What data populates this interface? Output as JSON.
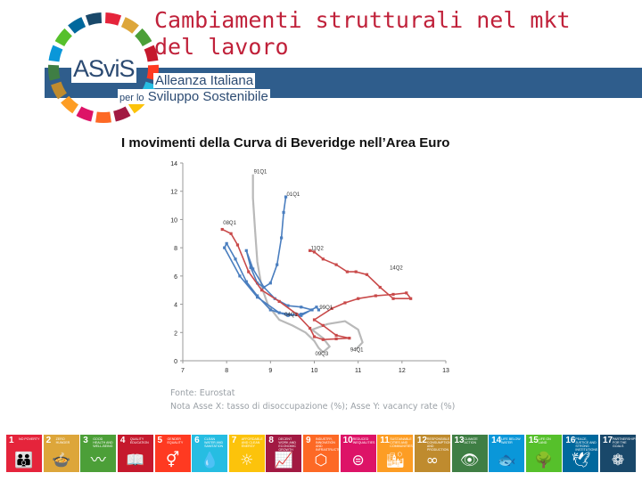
{
  "header": {
    "title": "Cambiamenti strutturali nel mkt del lavoro",
    "logo": {
      "name": "ASviS",
      "line1": "Alleanza Italiana",
      "line2_prefix": "per lo",
      "line2": "Sviluppo Sostenibile"
    }
  },
  "chart_title": "I movimenti della Curva di Beveridge nell’Area Euro",
  "notes": {
    "source": "Fonte: Eurostat",
    "note": "Nota Asse X: tasso di disoccupazione (%); Asse Y: vacancy rate (%)"
  },
  "chart_data": {
    "type": "line",
    "title": "I movimenti della Curva di Beveridge nell’Area Euro",
    "xlabel": "",
    "ylabel": "",
    "xlim": [
      7,
      13
    ],
    "ylim": [
      0,
      14
    ],
    "xticks": [
      7,
      8,
      9,
      10,
      11,
      12,
      13
    ],
    "yticks": [
      0,
      2,
      4,
      6,
      8,
      10,
      12,
      14
    ],
    "grid": false,
    "legend": "none",
    "series": [
      {
        "color": "#b9b9b9",
        "marker": false,
        "points": [
          [
            8.6,
            13.2
          ],
          [
            8.6,
            11.5
          ],
          [
            8.65,
            9.2
          ],
          [
            8.7,
            7.0
          ],
          [
            8.8,
            5.2
          ],
          [
            8.95,
            3.9
          ],
          [
            9.2,
            2.9
          ],
          [
            9.5,
            2.5
          ],
          [
            9.8,
            2.0
          ],
          [
            10.0,
            1.4
          ],
          [
            10.1,
            0.9
          ],
          [
            10.2,
            0.6
          ],
          [
            10.35,
            1.0
          ],
          [
            10.2,
            1.6
          ],
          [
            9.95,
            2.2
          ],
          [
            10.3,
            2.6
          ],
          [
            10.7,
            2.8
          ],
          [
            11.0,
            2.2
          ],
          [
            11.1,
            1.3
          ],
          [
            10.95,
            0.8
          ]
        ]
      },
      {
        "color": "#4a7ebf",
        "marker": true,
        "points": [
          [
            9.35,
            11.6
          ],
          [
            9.3,
            10.5
          ],
          [
            9.25,
            8.7
          ],
          [
            9.15,
            6.8
          ],
          [
            9.0,
            5.5
          ],
          [
            8.85,
            5.2
          ],
          [
            8.7,
            5.5
          ],
          [
            8.55,
            6.6
          ],
          [
            8.45,
            7.8
          ],
          [
            8.6,
            6.5
          ],
          [
            8.85,
            5.2
          ],
          [
            9.1,
            4.4
          ],
          [
            9.4,
            3.9
          ],
          [
            9.7,
            3.8
          ],
          [
            9.95,
            3.6
          ],
          [
            9.7,
            3.3
          ],
          [
            9.4,
            3.2
          ],
          [
            9.0,
            3.6
          ],
          [
            8.7,
            4.6
          ],
          [
            8.45,
            5.6
          ],
          [
            8.2,
            7.2
          ],
          [
            8.0,
            8.3
          ],
          [
            7.95,
            8.0
          ],
          [
            8.3,
            6.0
          ],
          [
            8.7,
            4.5
          ],
          [
            9.2,
            3.4
          ],
          [
            9.7,
            3.2
          ],
          [
            10.05,
            3.8
          ],
          [
            10.1,
            3.6
          ]
        ]
      },
      {
        "color": "#c94a4a",
        "marker": true,
        "points": [
          [
            7.9,
            9.3
          ],
          [
            8.1,
            9.0
          ],
          [
            8.25,
            8.2
          ],
          [
            8.5,
            6.3
          ],
          [
            8.8,
            5.0
          ],
          [
            9.2,
            4.2
          ],
          [
            9.6,
            3.3
          ],
          [
            9.9,
            2.3
          ],
          [
            10.0,
            1.7
          ],
          [
            10.2,
            1.5
          ],
          [
            10.5,
            1.55
          ],
          [
            10.8,
            1.6
          ],
          [
            10.5,
            1.8
          ],
          [
            10.2,
            2.5
          ],
          [
            10.0,
            2.9
          ],
          [
            10.4,
            3.7
          ],
          [
            10.7,
            4.1
          ],
          [
            11.0,
            4.4
          ],
          [
            11.4,
            4.6
          ],
          [
            11.8,
            4.7
          ],
          [
            12.1,
            4.8
          ],
          [
            12.2,
            4.4
          ],
          [
            11.8,
            4.4
          ],
          [
            11.5,
            5.2
          ],
          [
            11.2,
            6.1
          ],
          [
            10.95,
            6.3
          ],
          [
            10.75,
            6.3
          ],
          [
            10.5,
            6.8
          ],
          [
            10.2,
            7.2
          ],
          [
            10.0,
            7.7
          ],
          [
            9.9,
            7.8
          ]
        ]
      }
    ],
    "annotations": [
      {
        "text": "91Q1",
        "x": 8.6,
        "y": 13.2
      },
      {
        "text": "01Q1",
        "x": 9.35,
        "y": 11.6
      },
      {
        "text": "08Q1",
        "x": 7.9,
        "y": 9.6
      },
      {
        "text": "11Q2",
        "x": 9.9,
        "y": 7.8
      },
      {
        "text": "14Q2",
        "x": 11.7,
        "y": 6.4
      },
      {
        "text": "99Q1",
        "x": 10.1,
        "y": 3.6
      },
      {
        "text": "04Q1",
        "x": 9.3,
        "y": 3.1
      },
      {
        "text": "09Q3",
        "x": 10.0,
        "y": 0.3
      },
      {
        "text": "94Q1",
        "x": 10.8,
        "y": 0.6
      }
    ]
  },
  "sdg": [
    {
      "num": "1",
      "label": "No poverty",
      "color": "#e5243b",
      "icon": "👪"
    },
    {
      "num": "2",
      "label": "Zero hunger",
      "color": "#dda63a",
      "icon": "🍲"
    },
    {
      "num": "3",
      "label": "Good health and well-being",
      "color": "#4c9f38",
      "icon": "〰"
    },
    {
      "num": "4",
      "label": "Quality education",
      "color": "#c5192d",
      "icon": "📖"
    },
    {
      "num": "5",
      "label": "Gender equality",
      "color": "#ff3a21",
      "icon": "⚥"
    },
    {
      "num": "6",
      "label": "Clean water and sanitation",
      "color": "#26bde2",
      "icon": "💧"
    },
    {
      "num": "7",
      "label": "Affordable and clean energy",
      "color": "#fcc30b",
      "icon": "☼"
    },
    {
      "num": "8",
      "label": "Decent work and economic growth",
      "color": "#a21942",
      "icon": "📈"
    },
    {
      "num": "9",
      "label": "Industry, innovation and infrastructure",
      "color": "#fd6925",
      "icon": "⬡"
    },
    {
      "num": "10",
      "label": "Reduced inequalities",
      "color": "#dd1367",
      "icon": "⊜"
    },
    {
      "num": "11",
      "label": "Sustainable cities and communities",
      "color": "#fd9d24",
      "icon": "🏙"
    },
    {
      "num": "12",
      "label": "Responsible consumption and production",
      "color": "#bf8b2e",
      "icon": "∞"
    },
    {
      "num": "13",
      "label": "Climate action",
      "color": "#3f7e44",
      "icon": "👁"
    },
    {
      "num": "14",
      "label": "Life below water",
      "color": "#0a97d9",
      "icon": "🐟"
    },
    {
      "num": "15",
      "label": "Life on land",
      "color": "#56c02b",
      "icon": "🌳"
    },
    {
      "num": "16",
      "label": "Peace, justice and strong institutions",
      "color": "#00689d",
      "icon": "🕊"
    },
    {
      "num": "17",
      "label": "Partnerships for the goals",
      "color": "#19486a",
      "icon": "❁"
    }
  ]
}
